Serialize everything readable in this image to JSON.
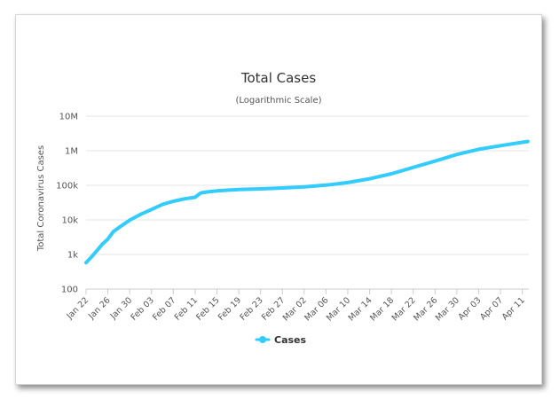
{
  "chart_data": {
    "type": "line",
    "title": "Total Cases",
    "subtitle": "(Logarithmic Scale)",
    "xlabel": "",
    "ylabel": "Total Coronavirus Cases",
    "y_scale": "log",
    "ylim": [
      100,
      10000000
    ],
    "y_ticks": [
      100,
      1000,
      10000,
      100000,
      1000000,
      10000000
    ],
    "y_tick_labels": [
      "100",
      "1k",
      "10k",
      "100k",
      "1M",
      "10M"
    ],
    "x_tick_labels": [
      "Jan 22",
      "Jan 26",
      "Jan 30",
      "Feb 03",
      "Feb 07",
      "Feb 11",
      "Feb 15",
      "Feb 19",
      "Feb 23",
      "Feb 27",
      "Mar 02",
      "Mar 06",
      "Mar 10",
      "Mar 14",
      "Mar 18",
      "Mar 22",
      "Mar 26",
      "Mar 30",
      "Apr 03",
      "Apr 07",
      "Apr 11"
    ],
    "legend": {
      "position": "bottom-center"
    },
    "grid": true,
    "series": [
      {
        "name": "Cases",
        "color": "#33ccff",
        "x": [
          "Jan 22",
          "Jan 23",
          "Jan 24",
          "Jan 25",
          "Jan 26",
          "Jan 27",
          "Jan 28",
          "Jan 30",
          "Feb 01",
          "Feb 03",
          "Feb 05",
          "Feb 07",
          "Feb 09",
          "Feb 11",
          "Feb 12",
          "Feb 13",
          "Feb 15",
          "Feb 19",
          "Feb 23",
          "Feb 27",
          "Mar 02",
          "Mar 06",
          "Mar 10",
          "Mar 14",
          "Mar 18",
          "Mar 22",
          "Mar 26",
          "Mar 30",
          "Apr 03",
          "Apr 07",
          "Apr 11",
          "Apr 12"
        ],
        "values": [
          580,
          850,
          1300,
          2000,
          2800,
          4600,
          6000,
          9800,
          14500,
          20000,
          28000,
          34500,
          40500,
          45000,
          60000,
          64000,
          69000,
          75600,
          79000,
          84000,
          90000,
          101000,
          120000,
          155000,
          215000,
          330000,
          500000,
          780000,
          1100000,
          1400000,
          1750000,
          1850000
        ]
      }
    ]
  }
}
